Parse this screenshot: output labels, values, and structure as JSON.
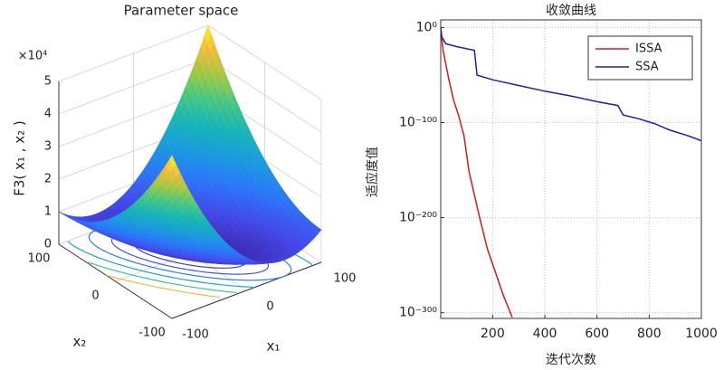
{
  "chart_data": [
    {
      "type": "surface",
      "title": "Parameter space",
      "xlabel": "x₁",
      "ylabel": "x₂",
      "zlabel": "F3( x₁ , x₂ )",
      "zexponent_label": "×10⁴",
      "xlim": [
        -100,
        100
      ],
      "xticks": [
        -100,
        0,
        100
      ],
      "ylim": [
        -100,
        100
      ],
      "yticks": [
        -100,
        0,
        100
      ],
      "zlim": [
        0,
        5
      ],
      "zticks": [
        0,
        1,
        2,
        3,
        4,
        5
      ],
      "colormap": "parula",
      "grid": true
    },
    {
      "type": "line",
      "title": "收敛曲线",
      "xlabel": "迭代次数",
      "ylabel": "适应度值",
      "yscale": "log",
      "xlim": [
        1,
        1000
      ],
      "xticks": [
        200,
        400,
        600,
        800,
        1000
      ],
      "ylim": [
        1e-306,
        100000000.0
      ],
      "yticks": [
        {
          "value": 1,
          "label": "10⁰"
        },
        {
          "value": 1e-100,
          "label": "10⁻¹⁰⁰"
        },
        {
          "value": 1e-200,
          "label": "10⁻²⁰⁰"
        },
        {
          "value": 1e-300,
          "label": "10⁻³⁰⁰"
        }
      ],
      "grid": true,
      "legend": "northeast",
      "series": [
        {
          "name": "ISSA",
          "color": "#d7191c",
          "x": [
            1,
            10,
            20,
            30,
            50,
            70,
            90,
            110,
            130,
            150,
            180,
            210,
            240,
            275
          ],
          "values": [
            1,
            1e-24,
            1e-38,
            1e-52,
            1e-76,
            1e-93,
            1e-114,
            1e-152,
            1e-176,
            1e-200,
            1e-233,
            1e-257,
            1e-281,
            1e-305
          ]
        },
        {
          "name": "SSA",
          "color": "#1f1fa8",
          "x": [
            1,
            5,
            20,
            60,
            130,
            140,
            200,
            300,
            400,
            500,
            600,
            680,
            700,
            760,
            820,
            880,
            950,
            1000
          ],
          "values": [
            1,
            1e-10,
            1e-17,
            1e-20,
            1e-24,
            1e-50,
            1e-55,
            1e-61,
            1e-67,
            1e-72,
            1e-78,
            1e-82,
            1e-92,
            1e-96,
            1e-101,
            1e-108,
            1e-114,
            1e-119
          ]
        }
      ]
    }
  ]
}
